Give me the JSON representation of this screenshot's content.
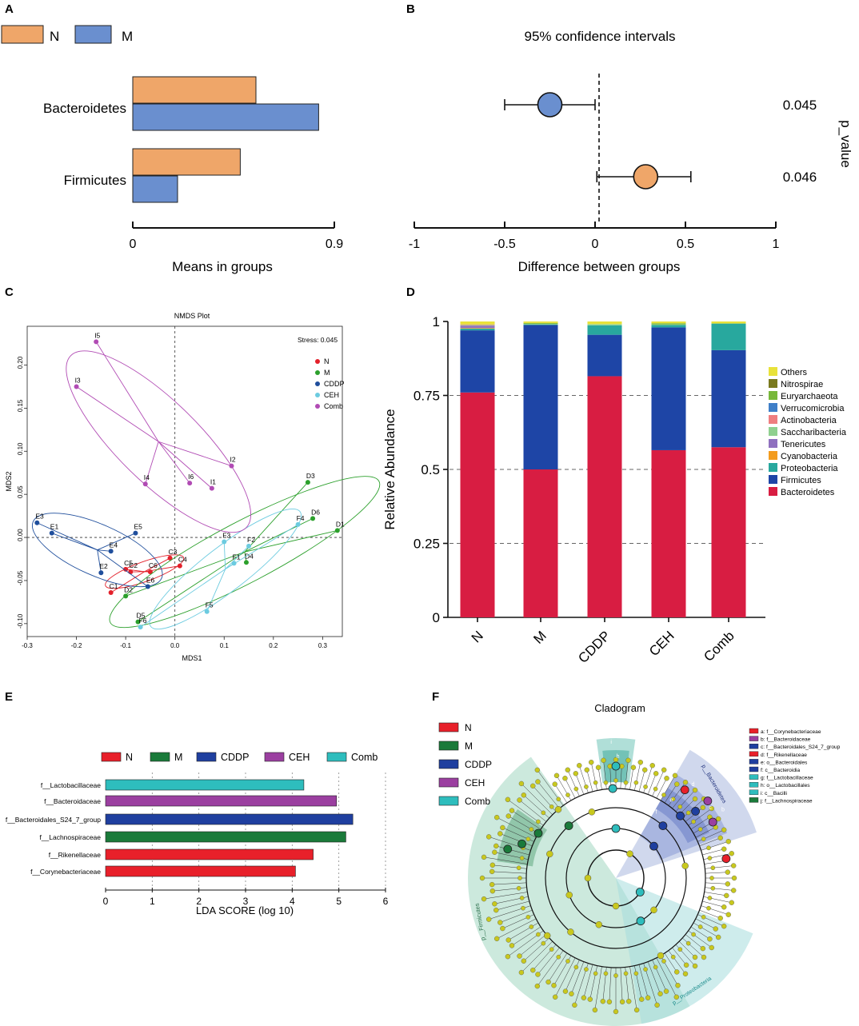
{
  "panel_labels": [
    "A",
    "B",
    "C",
    "D",
    "E",
    "F"
  ],
  "colors": {
    "N": "#efa669",
    "M": "#6a8fcf",
    "nmds": {
      "N": "#e3202a",
      "M": "#2ca02c",
      "CDDP": "#1f4e9c",
      "CEH": "#6ccbe0",
      "Comb": "#b14bb4"
    },
    "phyla": {
      "Others": "#e8e23a",
      "Nitrospirae": "#7a7a1e",
      "Euryarchaeota": "#78b83a",
      "Verrucomicrobia": "#3f7fc8",
      "Actinobacteria": "#ef7e80",
      "Saccharibacteria": "#8fd08f",
      "Tenericutes": "#8f70bf",
      "Cyanobacteria": "#f39c1f",
      "Proteobacteria": "#28a89e",
      "Firmicutes": "#1e45a6",
      "Bacteroidetes": "#d81d42"
    },
    "lefse": {
      "N": "#e8202a",
      "M": "#1a7a3a",
      "CDDP": "#1f3f9f",
      "CEH": "#9b3fa0",
      "Comb": "#2ebdbd"
    }
  },
  "chart_data": [
    {
      "panel": "A",
      "type": "bar",
      "orientation": "horizontal",
      "categories": [
        "Bacteroidetes",
        "Firmicutes"
      ],
      "series": [
        {
          "name": "N",
          "values": [
            0.55,
            0.48
          ]
        },
        {
          "name": "M",
          "values": [
            0.83,
            0.2
          ]
        }
      ],
      "xlabel": "Means in groups",
      "xlim": [
        0,
        0.9
      ],
      "xticks": [
        "0",
        "0.9"
      ]
    },
    {
      "panel": "B",
      "type": "scatter",
      "title": "95% confidence intervals",
      "xlabel": "Difference between groups",
      "xlim": [
        -1,
        1
      ],
      "xticks": [
        "-1",
        "-0.5",
        "0",
        "0.5",
        "1"
      ],
      "ylabel_right": "p_value",
      "points": [
        {
          "category": "Bacteroidetes",
          "group": "M",
          "estimate": -0.25,
          "ci_low": -0.5,
          "ci_high": 0.0,
          "p_value": "0.045"
        },
        {
          "category": "Firmicutes",
          "group": "N",
          "estimate": 0.28,
          "ci_low": 0.01,
          "ci_high": 0.53,
          "p_value": "0.046"
        }
      ]
    },
    {
      "panel": "C",
      "type": "scatter",
      "title": "NMDS Plot",
      "stress_label": "Stress:  0.045",
      "xlabel": "MDS1",
      "ylabel": "MDS2",
      "xlim": [
        -0.3,
        0.34
      ],
      "ylim": [
        -0.115,
        0.245
      ],
      "xticks": [
        "-0.3",
        "-0.2",
        "-0.1",
        "0.0",
        "0.1",
        "0.2",
        "0.3"
      ],
      "yticks": [
        "-0.10",
        "-0.05",
        "0.00",
        "0.05",
        "0.10",
        "0.15",
        "0.20"
      ],
      "legend": [
        "N",
        "M",
        "CDDP",
        "CEH",
        "Comb"
      ],
      "groups": [
        {
          "name": "N",
          "points": [
            {
              "label": "C1",
              "x": -0.13,
              "y": -0.064
            },
            {
              "label": "C2",
              "x": -0.09,
              "y": -0.04
            },
            {
              "label": "C3",
              "x": -0.01,
              "y": -0.024
            },
            {
              "label": "C4",
              "x": 0.01,
              "y": -0.033
            },
            {
              "label": "C5",
              "x": -0.1,
              "y": -0.037
            },
            {
              "label": "C6",
              "x": -0.05,
              "y": -0.04
            }
          ]
        },
        {
          "name": "M",
          "points": [
            {
              "label": "D1",
              "x": 0.33,
              "y": 0.008
            },
            {
              "label": "D2",
              "x": -0.1,
              "y": -0.068
            },
            {
              "label": "D3",
              "x": 0.27,
              "y": 0.064
            },
            {
              "label": "D4",
              "x": 0.145,
              "y": -0.029
            },
            {
              "label": "D5",
              "x": -0.075,
              "y": -0.098
            },
            {
              "label": "D6",
              "x": 0.28,
              "y": 0.022
            }
          ]
        },
        {
          "name": "CDDP",
          "points": [
            {
              "label": "E1",
              "x": -0.25,
              "y": 0.005
            },
            {
              "label": "E2",
              "x": -0.15,
              "y": -0.041
            },
            {
              "label": "E3",
              "x": -0.28,
              "y": 0.017
            },
            {
              "label": "E4",
              "x": -0.13,
              "y": -0.016
            },
            {
              "label": "E5",
              "x": -0.08,
              "y": 0.005
            },
            {
              "label": "E6",
              "x": -0.055,
              "y": -0.057
            }
          ]
        },
        {
          "name": "CEH",
          "points": [
            {
              "label": "F1",
              "x": 0.12,
              "y": -0.03
            },
            {
              "label": "F2",
              "x": 0.15,
              "y": -0.01
            },
            {
              "label": "F3",
              "x": 0.1,
              "y": -0.005
            },
            {
              "label": "F4",
              "x": 0.25,
              "y": 0.015
            },
            {
              "label": "F5",
              "x": 0.065,
              "y": -0.086
            },
            {
              "label": "F6",
              "x": -0.07,
              "y": -0.104
            }
          ]
        },
        {
          "name": "Comb",
          "points": [
            {
              "label": "I1",
              "x": 0.075,
              "y": 0.057
            },
            {
              "label": "I2",
              "x": 0.115,
              "y": 0.083
            },
            {
              "label": "I3",
              "x": -0.2,
              "y": 0.175
            },
            {
              "label": "I4",
              "x": -0.06,
              "y": 0.062
            },
            {
              "label": "I5",
              "x": -0.16,
              "y": 0.227
            },
            {
              "label": "I6",
              "x": 0.03,
              "y": 0.063
            }
          ]
        }
      ]
    },
    {
      "panel": "D",
      "type": "bar",
      "stacked": true,
      "categories": [
        "N",
        "M",
        "CDDP",
        "CEH",
        "Comb"
      ],
      "ylabel": "Relative Abundance",
      "ylim": [
        0,
        1
      ],
      "yticks": [
        "0",
        "0.25",
        "0.5",
        "0.75",
        "1"
      ],
      "series": [
        {
          "name": "Bacteroidetes",
          "values": [
            0.76,
            0.5,
            0.815,
            0.565,
            0.575
          ]
        },
        {
          "name": "Firmicutes",
          "values": [
            0.21,
            0.488,
            0.14,
            0.415,
            0.328
          ]
        },
        {
          "name": "Proteobacteria",
          "values": [
            0.006,
            0.002,
            0.032,
            0.008,
            0.09
          ]
        },
        {
          "name": "Cyanobacteria",
          "values": [
            0.002,
            0.0,
            0.0,
            0.0,
            0.0
          ]
        },
        {
          "name": "Tenericutes",
          "values": [
            0.008,
            0.0,
            0.0,
            0.0,
            0.0
          ]
        },
        {
          "name": "Saccharibacteria",
          "values": [
            0.002,
            0.002,
            0.004,
            0.002,
            0.0
          ]
        },
        {
          "name": "Actinobacteria",
          "values": [
            0.002,
            0.0,
            0.0,
            0.0,
            0.0
          ]
        },
        {
          "name": "Verrucomicrobia",
          "values": [
            0.0,
            0.0,
            0.0,
            0.0,
            0.0
          ]
        },
        {
          "name": "Euryarchaeota",
          "values": [
            0.0,
            0.003,
            0.0,
            0.004,
            0.0
          ]
        },
        {
          "name": "Nitrospirae",
          "values": [
            0.0,
            0.0,
            0.0,
            0.0,
            0.0
          ]
        },
        {
          "name": "Others",
          "values": [
            0.01,
            0.005,
            0.009,
            0.006,
            0.007
          ]
        }
      ],
      "legend_order": [
        "Others",
        "Nitrospirae",
        "Euryarchaeota",
        "Verrucomicrobia",
        "Actinobacteria",
        "Saccharibacteria",
        "Tenericutes",
        "Cyanobacteria",
        "Proteobacteria",
        "Firmicutes",
        "Bacteroidetes"
      ]
    },
    {
      "panel": "E",
      "type": "bar",
      "orientation": "horizontal",
      "xlabel": "LDA SCORE (log 10)",
      "xlim": [
        0,
        6
      ],
      "xticks": [
        "0",
        "1",
        "2",
        "3",
        "4",
        "5",
        "6"
      ],
      "legend": [
        "N",
        "M",
        "CDDP",
        "CEH",
        "Comb"
      ],
      "bars": [
        {
          "label": "f__Lactobacillaceae",
          "group": "Comb",
          "value": 4.25
        },
        {
          "label": "f__Bacteroidaceae",
          "group": "CEH",
          "value": 4.95
        },
        {
          "label": "f__Bacteroidales_S24_7_group",
          "group": "CDDP",
          "value": 5.3
        },
        {
          "label": "f__Lachnospiraceae",
          "group": "M",
          "value": 5.15
        },
        {
          "label": "f__Rikenellaceae",
          "group": "N",
          "value": 4.45
        },
        {
          "label": "f__Corynebacteriaceae",
          "group": "N",
          "value": 4.07
        }
      ]
    }
  ],
  "cladogram": {
    "title": "Cladogram",
    "legend": [
      "N",
      "M",
      "CDDP",
      "CEH",
      "Comb"
    ],
    "key": [
      "a: f__Corynebacteriaceae",
      "b: f__Bacteroidaceae",
      "c: f__Bacteroidales_S24_7_group",
      "d: f__Rikenellaceae",
      "e: o__Bacteroidales",
      "f: c__Bacteroidia",
      "g: f__Lactobacillaceae",
      "h: o__Lactobacillales",
      "i: c__Bacilli",
      "j: f__Lachnospiraceae"
    ],
    "key_groups": [
      "N",
      "CEH",
      "CDDP",
      "N",
      "CDDP",
      "CDDP",
      "Comb",
      "Comb",
      "Comb",
      "M"
    ],
    "phylum_labels": [
      "p__Firmicutes",
      "p__Bacteroidetes",
      "p__Proteobacteria"
    ],
    "node_letters": [
      "a",
      "b",
      "c",
      "d",
      "e",
      "f",
      "h",
      "i"
    ]
  }
}
